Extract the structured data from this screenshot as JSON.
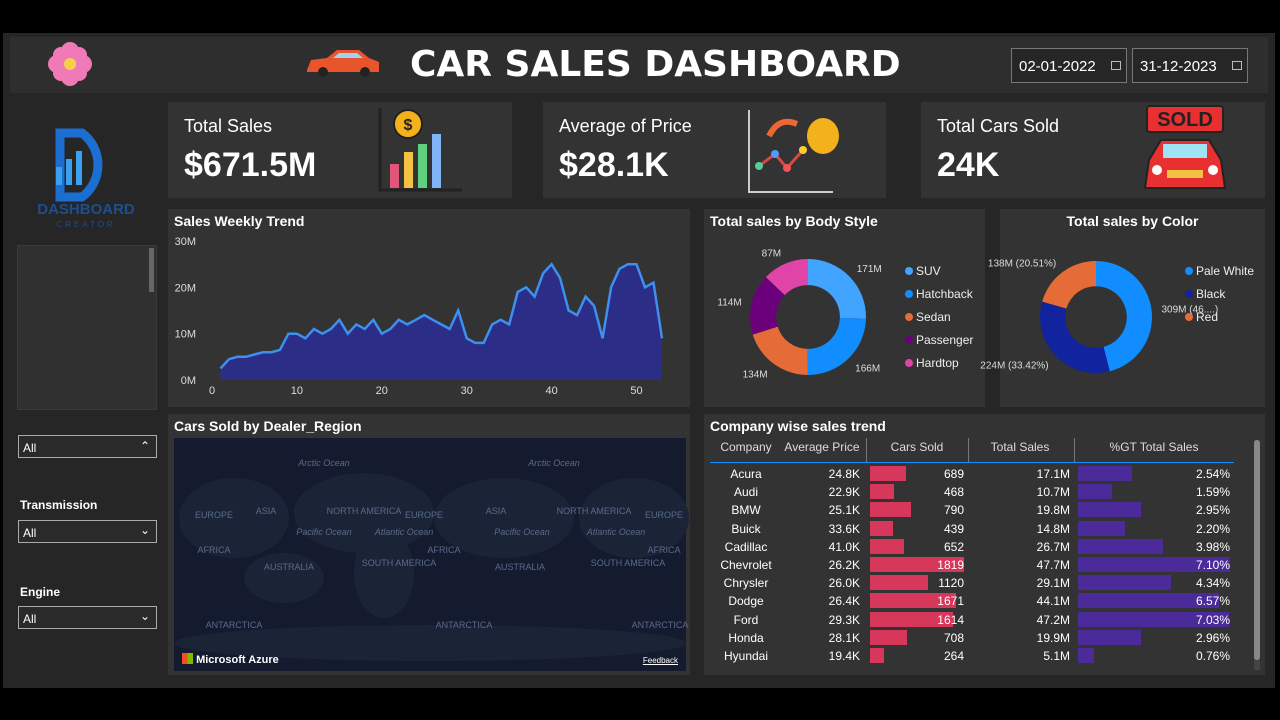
{
  "header": {
    "title": "CAR SALES DASHBOARD",
    "start_date": "02-01-2022",
    "end_date": "31-12-2023"
  },
  "logo": {
    "line1": "DASHBOARD",
    "line2": "CREATOR"
  },
  "kpis": [
    {
      "label": "Total Sales",
      "value": "$671.5M"
    },
    {
      "label": "Average of Price",
      "value": "$28.1K"
    },
    {
      "label": "Total Cars Sold",
      "value": "24K"
    }
  ],
  "sold_badge": "SOLD",
  "filters": [
    {
      "value": "All"
    },
    {
      "label": "Transmission",
      "value": "All"
    },
    {
      "label": "Engine",
      "value": "All"
    }
  ],
  "weekly_trend": {
    "type": "area",
    "title": "Sales Weekly Trend",
    "x": [
      1,
      2,
      3,
      4,
      5,
      6,
      7,
      8,
      9,
      10,
      11,
      12,
      13,
      14,
      15,
      16,
      17,
      18,
      19,
      20,
      21,
      22,
      23,
      24,
      25,
      26,
      27,
      28,
      29,
      30,
      31,
      32,
      33,
      34,
      35,
      36,
      37,
      38,
      39,
      40,
      41,
      42,
      43,
      44,
      45,
      46,
      47,
      48,
      49,
      50,
      51,
      52,
      53
    ],
    "values": [
      2.5,
      4.5,
      5,
      5,
      5.5,
      6,
      6,
      6.5,
      10,
      10,
      9,
      11,
      10,
      11,
      13,
      10,
      12,
      11,
      13,
      10,
      11,
      13,
      12,
      13,
      14,
      13,
      12,
      11,
      15,
      9,
      8,
      8,
      12,
      13,
      12,
      19,
      20,
      18,
      23,
      25,
      22,
      15,
      14,
      18,
      16,
      9,
      20,
      24,
      25,
      25,
      20,
      21,
      9
    ],
    "xlim": [
      0,
      53
    ],
    "ylim": [
      0,
      30
    ],
    "xticks": [
      0,
      10,
      20,
      30,
      40,
      50
    ],
    "yticks": [
      {
        "value": 0,
        "label": "0M"
      },
      {
        "value": 10,
        "label": "10M"
      },
      {
        "value": 20,
        "label": "20M"
      },
      {
        "value": 30,
        "label": "30M"
      }
    ],
    "color": "#3d8ff0",
    "fill": "#2b2d86"
  },
  "body_style": {
    "type": "donut",
    "title": "Total sales by Body Style",
    "categories": [
      "SUV",
      "Hatchback",
      "Sedan",
      "Passenger",
      "Hardtop"
    ],
    "values": [
      171,
      166,
      134,
      114,
      87
    ],
    "value_labels": [
      "171M",
      "166M",
      "134M",
      "114M",
      "87M"
    ],
    "colors": [
      "#41a4ff",
      "#118dff",
      "#e66c37",
      "#6b007b",
      "#e044a7"
    ]
  },
  "color_sales": {
    "type": "donut",
    "title": "Total sales by Color",
    "categories": [
      "Pale White",
      "Black",
      "Red"
    ],
    "values": [
      309,
      224,
      138
    ],
    "value_labels": [
      "309M (46....)",
      "224M (33.42%)",
      "138M (20.51%)"
    ],
    "colors": [
      "#118dff",
      "#12239e",
      "#e66c37"
    ]
  },
  "map": {
    "title": "Cars Sold by Dealer_Region",
    "labels": [
      "Arctic Ocean",
      "Arctic Ocean",
      "EUROPE",
      "ASIA",
      "NORTH AMERICA",
      "EUROPE",
      "ASIA",
      "NORTH AMERICA",
      "EUROPE",
      "Pacific Ocean",
      "Atlantic Ocean",
      "Pacific Ocean",
      "Atlantic Ocean",
      "AFRICA",
      "AFRICA",
      "AFRICA",
      "AUSTRALIA",
      "SOUTH AMERICA",
      "AUSTRALIA",
      "SOUTH AMERICA",
      "ANTARCTICA",
      "ANTARCTICA",
      "ANTARCTICA"
    ],
    "brand": "Microsoft Azure",
    "feedback": "Feedback"
  },
  "table": {
    "title": "Company wise sales trend",
    "columns": [
      "Company",
      "Average Price",
      "Cars Sold",
      "Total Sales",
      "%GT Total Sales"
    ],
    "rows": [
      {
        "company": "Acura",
        "avg_price": "24.8K",
        "cars_sold": 689,
        "total_sales": "17.1M",
        "pct": 2.54,
        "pct_label": "2.54%"
      },
      {
        "company": "Audi",
        "avg_price": "22.9K",
        "cars_sold": 468,
        "total_sales": "10.7M",
        "pct": 1.59,
        "pct_label": "1.59%"
      },
      {
        "company": "BMW",
        "avg_price": "25.1K",
        "cars_sold": 790,
        "total_sales": "19.8M",
        "pct": 2.95,
        "pct_label": "2.95%"
      },
      {
        "company": "Buick",
        "avg_price": "33.6K",
        "cars_sold": 439,
        "total_sales": "14.8M",
        "pct": 2.2,
        "pct_label": "2.20%"
      },
      {
        "company": "Cadillac",
        "avg_price": "41.0K",
        "cars_sold": 652,
        "total_sales": "26.7M",
        "pct": 3.98,
        "pct_label": "3.98%"
      },
      {
        "company": "Chevrolet",
        "avg_price": "26.2K",
        "cars_sold": 1819,
        "total_sales": "47.7M",
        "pct": 7.1,
        "pct_label": "7.10%"
      },
      {
        "company": "Chrysler",
        "avg_price": "26.0K",
        "cars_sold": 1120,
        "total_sales": "29.1M",
        "pct": 4.34,
        "pct_label": "4.34%"
      },
      {
        "company": "Dodge",
        "avg_price": "26.4K",
        "cars_sold": 1671,
        "total_sales": "44.1M",
        "pct": 6.57,
        "pct_label": "6.57%"
      },
      {
        "company": "Ford",
        "avg_price": "29.3K",
        "cars_sold": 1614,
        "total_sales": "47.2M",
        "pct": 7.03,
        "pct_label": "7.03%"
      },
      {
        "company": "Honda",
        "avg_price": "28.1K",
        "cars_sold": 708,
        "total_sales": "19.9M",
        "pct": 2.96,
        "pct_label": "2.96%"
      },
      {
        "company": "Hyundai",
        "avg_price": "19.4K",
        "cars_sold": 264,
        "total_sales": "5.1M",
        "pct": 0.76,
        "pct_label": "0.76%"
      }
    ],
    "bar_color": "#d7375a",
    "pct_color": "#4b2a9a"
  }
}
